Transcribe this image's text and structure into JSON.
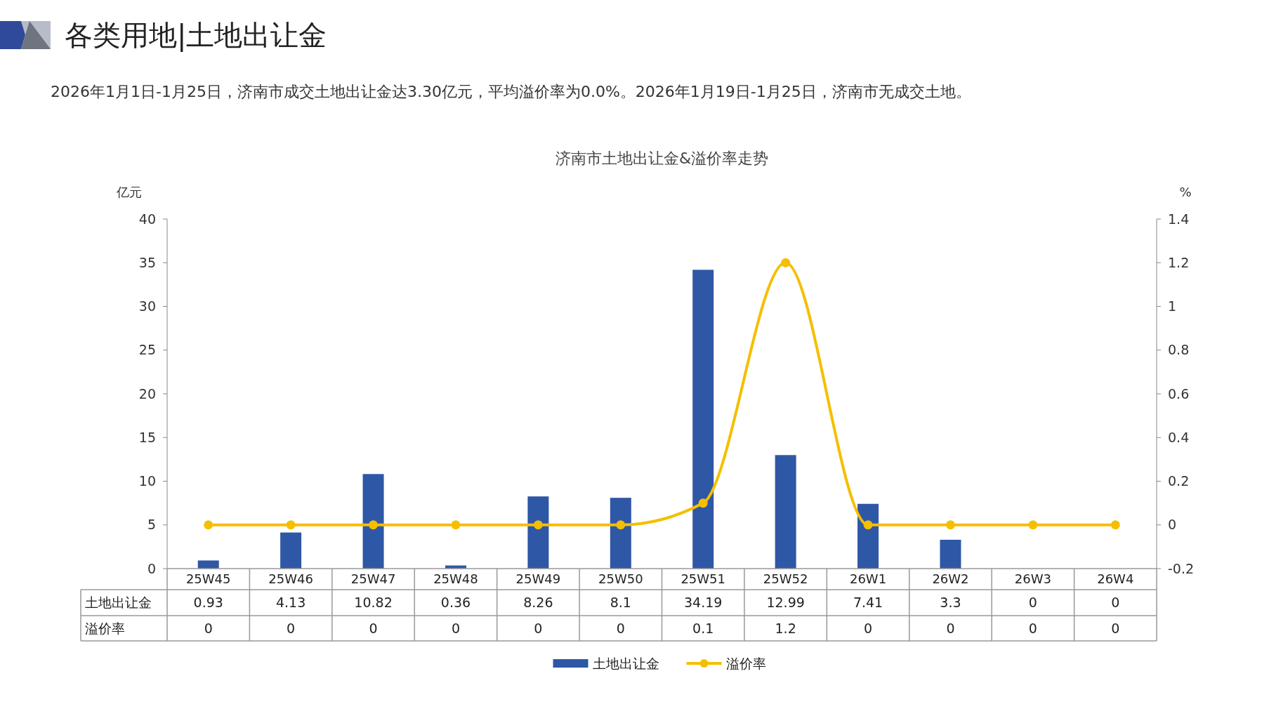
{
  "chart_data": {
    "type": "bar",
    "title": "济南市土地出让金&溢价率走势",
    "subtitle": "2026年1月1日-1月25日，济南市成交土地出让金达3.30亿元，平均溢价率为0.0%。2026年1月19日-1月25日，济南市无成交土地。",
    "annotations": [
      "各类用地|土地出让金"
    ],
    "ylabel": "亿元",
    "y2label": "%",
    "categories": [
      "25W45",
      "25W46",
      "25W47",
      "25W48",
      "25W49",
      "25W50",
      "25W51",
      "25W52",
      "26W1",
      "26W2",
      "26W3",
      "26W4"
    ],
    "series": [
      {
        "name": "土地出让金",
        "color": "#2e57a6",
        "values": [
          0.93,
          4.13,
          10.82,
          0.36,
          8.26,
          8.1,
          34.19,
          12.99,
          7.41,
          3.3,
          0,
          0
        ]
      },
      {
        "name": "溢价率",
        "type": "line",
        "axis": "y2",
        "color": "#f5bf00",
        "marker": "circle",
        "values": [
          0,
          0,
          0,
          0,
          0,
          0,
          0.1,
          1.2,
          0,
          0,
          0,
          0
        ]
      }
    ],
    "ylim": [
      0,
      40
    ],
    "yticks": [
      0,
      5,
      10,
      15,
      20,
      25,
      30,
      35,
      40
    ],
    "y2lim": [
      -0.2,
      1.4
    ],
    "y2ticks": [
      -0.2,
      0,
      0.2,
      0.4,
      0.6,
      0.8,
      1,
      1.2,
      1.4
    ],
    "data_labels": true,
    "legend": "bottom",
    "grid": false
  }
}
